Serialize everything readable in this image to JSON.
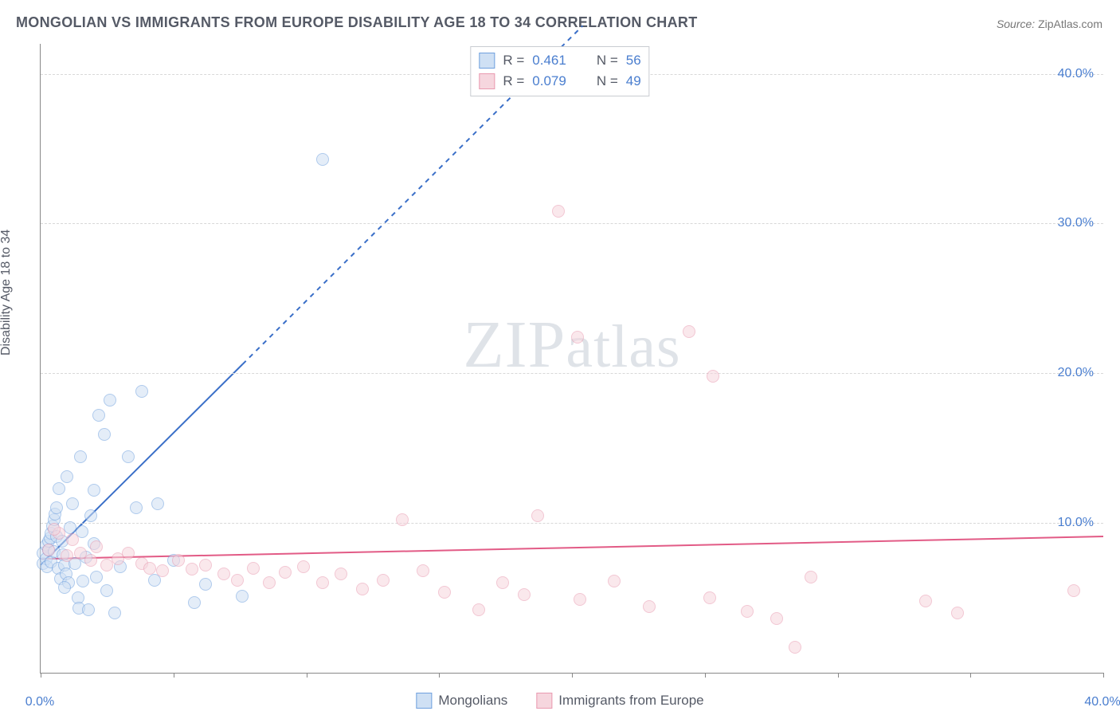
{
  "title": "MONGOLIAN VS IMMIGRANTS FROM EUROPE DISABILITY AGE 18 TO 34 CORRELATION CHART",
  "source": {
    "label": "Source:",
    "value": "ZipAtlas.com"
  },
  "watermark": {
    "part1": "ZIP",
    "part2": "atlas"
  },
  "chart": {
    "type": "scatter",
    "background_color": "#ffffff",
    "grid_color": "#d8d8d8",
    "axis_color": "#888888",
    "text_color": "#555a66",
    "tick_label_color": "#4a7ecf",
    "ylabel": "Disability Age 18 to 34",
    "ylabel_fontsize": 16,
    "xlim": [
      0,
      40
    ],
    "ylim": [
      0,
      42
    ],
    "x_ticks": [
      0,
      5,
      10,
      15,
      20,
      25,
      30,
      35,
      40
    ],
    "x_tick_labels": {
      "0": "0.0%",
      "40": "40.0%"
    },
    "y_ticks": [
      10,
      20,
      30,
      40
    ],
    "y_tick_labels": {
      "10": "10.0%",
      "20": "20.0%",
      "30": "30.0%",
      "40": "40.0%"
    },
    "marker_radius": 8,
    "marker_stroke_width": 1.5,
    "series": [
      {
        "name": "Mongolians",
        "color_fill": "#cfe0f4",
        "color_stroke": "#6fa0de",
        "fill_opacity": 0.55,
        "trend": {
          "start": [
            0,
            7.2
          ],
          "end_solid": [
            7.6,
            20.6
          ],
          "end_dashed": [
            20.4,
            43.2
          ],
          "stroke": "#3a6fc8",
          "width": 2
        },
        "stats": {
          "R": "0.461",
          "N": "56"
        },
        "points": [
          [
            0.1,
            7.3
          ],
          [
            0.1,
            8.0
          ],
          [
            0.2,
            7.6
          ],
          [
            0.2,
            8.5
          ],
          [
            0.25,
            7.1
          ],
          [
            0.3,
            8.2
          ],
          [
            0.3,
            8.8
          ],
          [
            0.35,
            9.0
          ],
          [
            0.4,
            7.4
          ],
          [
            0.4,
            9.3
          ],
          [
            0.45,
            9.8
          ],
          [
            0.5,
            8.1
          ],
          [
            0.5,
            10.2
          ],
          [
            0.55,
            10.6
          ],
          [
            0.6,
            9.1
          ],
          [
            0.6,
            11.0
          ],
          [
            0.65,
            7.0
          ],
          [
            0.7,
            12.3
          ],
          [
            0.75,
            6.3
          ],
          [
            0.8,
            8.8
          ],
          [
            0.85,
            7.9
          ],
          [
            0.9,
            7.2
          ],
          [
            0.95,
            6.6
          ],
          [
            1.0,
            13.1
          ],
          [
            1.05,
            6.0
          ],
          [
            1.1,
            9.7
          ],
          [
            1.2,
            11.3
          ],
          [
            1.3,
            7.3
          ],
          [
            1.4,
            5.0
          ],
          [
            1.45,
            4.3
          ],
          [
            1.5,
            14.4
          ],
          [
            1.6,
            6.1
          ],
          [
            1.7,
            7.7
          ],
          [
            1.8,
            4.2
          ],
          [
            1.9,
            10.5
          ],
          [
            2.0,
            12.2
          ],
          [
            2.1,
            6.4
          ],
          [
            2.2,
            17.2
          ],
          [
            2.4,
            15.9
          ],
          [
            2.5,
            5.5
          ],
          [
            2.6,
            18.2
          ],
          [
            2.8,
            4.0
          ],
          [
            3.0,
            7.1
          ],
          [
            3.3,
            14.4
          ],
          [
            3.6,
            11.0
          ],
          [
            3.8,
            18.8
          ],
          [
            4.3,
            6.2
          ],
          [
            4.4,
            11.3
          ],
          [
            5.0,
            7.5
          ],
          [
            5.8,
            4.7
          ],
          [
            6.2,
            5.9
          ],
          [
            7.6,
            5.1
          ],
          [
            10.6,
            34.3
          ],
          [
            2.0,
            8.6
          ],
          [
            1.55,
            9.4
          ],
          [
            0.9,
            5.7
          ]
        ]
      },
      {
        "name": "Immigrants from Europe",
        "color_fill": "#f6d6de",
        "color_stroke": "#e99ab0",
        "fill_opacity": 0.55,
        "trend": {
          "start": [
            0,
            7.6
          ],
          "end_solid": [
            40,
            9.1
          ],
          "stroke": "#e25b86",
          "width": 2
        },
        "stats": {
          "R": "0.079",
          "N": "49"
        },
        "points": [
          [
            0.3,
            8.2
          ],
          [
            0.7,
            9.3
          ],
          [
            1.0,
            7.8
          ],
          [
            1.2,
            8.9
          ],
          [
            1.5,
            8.0
          ],
          [
            1.9,
            7.5
          ],
          [
            2.1,
            8.4
          ],
          [
            2.5,
            7.2
          ],
          [
            2.9,
            7.6
          ],
          [
            3.3,
            8.0
          ],
          [
            3.8,
            7.3
          ],
          [
            4.1,
            7.0
          ],
          [
            4.6,
            6.8
          ],
          [
            5.2,
            7.5
          ],
          [
            5.7,
            6.9
          ],
          [
            6.2,
            7.2
          ],
          [
            6.9,
            6.6
          ],
          [
            7.4,
            6.2
          ],
          [
            8.0,
            7.0
          ],
          [
            8.6,
            6.0
          ],
          [
            9.2,
            6.7
          ],
          [
            9.9,
            7.1
          ],
          [
            10.6,
            6.0
          ],
          [
            11.3,
            6.6
          ],
          [
            12.1,
            5.6
          ],
          [
            12.9,
            6.2
          ],
          [
            13.6,
            10.2
          ],
          [
            14.4,
            6.8
          ],
          [
            15.2,
            5.4
          ],
          [
            16.5,
            4.2
          ],
          [
            17.4,
            6.0
          ],
          [
            18.2,
            5.2
          ],
          [
            18.7,
            10.5
          ],
          [
            19.5,
            30.8
          ],
          [
            20.2,
            22.4
          ],
          [
            20.3,
            4.9
          ],
          [
            21.6,
            6.1
          ],
          [
            22.9,
            4.4
          ],
          [
            24.4,
            22.8
          ],
          [
            25.2,
            5.0
          ],
          [
            25.3,
            19.8
          ],
          [
            26.6,
            4.1
          ],
          [
            27.7,
            3.6
          ],
          [
            28.4,
            1.7
          ],
          [
            29.0,
            6.4
          ],
          [
            33.3,
            4.8
          ],
          [
            34.5,
            4.0
          ],
          [
            38.9,
            5.5
          ],
          [
            0.5,
            9.6
          ]
        ]
      }
    ],
    "legend_top": {
      "R_label": "R  =",
      "N_label": "N  ="
    },
    "legend_bottom_labels": [
      "Mongolians",
      "Immigrants from Europe"
    ]
  }
}
